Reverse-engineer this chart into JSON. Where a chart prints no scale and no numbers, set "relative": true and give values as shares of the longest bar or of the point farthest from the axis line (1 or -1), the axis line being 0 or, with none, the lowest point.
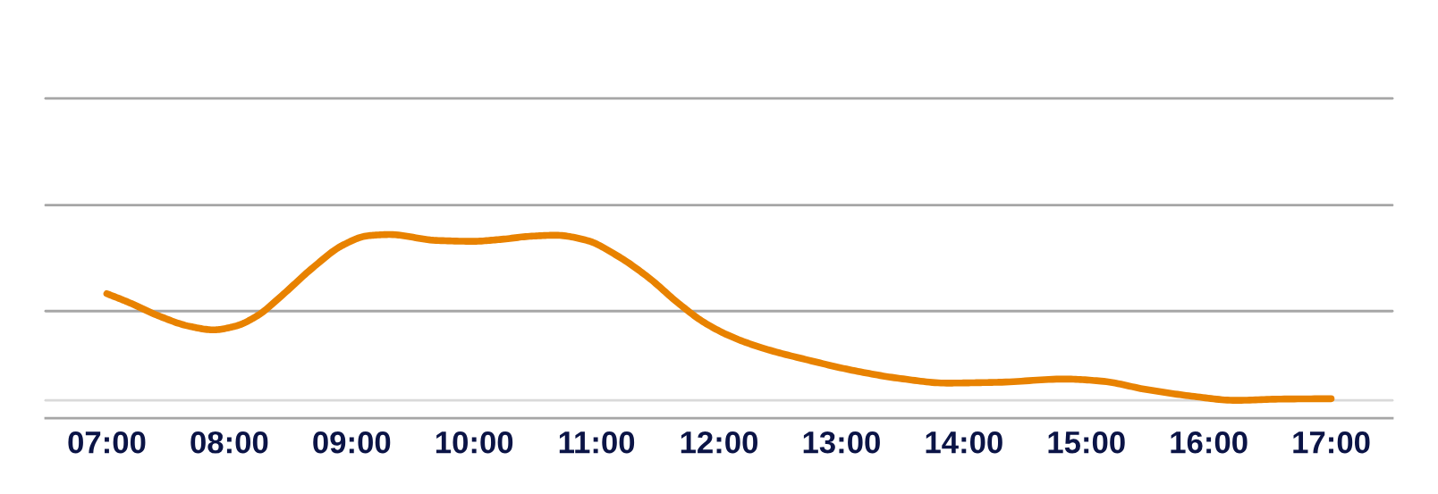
{
  "chart_data": {
    "type": "line",
    "relative": true,
    "x": [
      7.0,
      7.17,
      7.42,
      7.67,
      7.87,
      8.05,
      8.23,
      8.43,
      8.68,
      8.93,
      9.13,
      9.31,
      9.69,
      9.99,
      10.21,
      10.47,
      10.67,
      10.92,
      11.17,
      11.42,
      11.67,
      11.87,
      12.08,
      12.35,
      12.73,
      13.11,
      13.48,
      13.86,
      14.1,
      14.31,
      14.82,
      15.12,
      15.49,
      15.86,
      16.22,
      16.59,
      17.0
    ],
    "values": [
      0.678,
      0.633,
      0.558,
      0.501,
      0.481,
      0.501,
      0.558,
      0.668,
      0.818,
      0.943,
      0.993,
      1.0,
      0.968,
      0.963,
      0.973,
      0.991,
      0.996,
      0.968,
      0.884,
      0.768,
      0.625,
      0.525,
      0.45,
      0.383,
      0.316,
      0.258,
      0.216,
      0.191,
      0.193,
      0.196,
      0.213,
      0.202,
      0.156,
      0.12,
      0.097,
      0.104,
      0.106
    ],
    "color": "#E88200",
    "xlim": [
      6.5,
      17.5
    ],
    "xticks": [
      {
        "value": 7,
        "label": "07:00"
      },
      {
        "value": 8,
        "label": "08:00"
      },
      {
        "value": 9,
        "label": "09:00"
      },
      {
        "value": 10,
        "label": "10:00"
      },
      {
        "value": 11,
        "label": "11:00"
      },
      {
        "value": 12,
        "label": "12:00"
      },
      {
        "value": 13,
        "label": "13:00"
      },
      {
        "value": 14,
        "label": "14:00"
      },
      {
        "value": 15,
        "label": "15:00"
      },
      {
        "value": 16,
        "label": "16:00"
      },
      {
        "value": 17,
        "label": "17:00"
      }
    ],
    "ref_lines": [
      {
        "axis": "y",
        "value": 0.097,
        "color": "#D9D9D9"
      },
      {
        "axis": "y",
        "value": 0.583,
        "color": "#A6A6A6"
      },
      {
        "axis": "y",
        "value": 1.16,
        "color": "#A6A6A6"
      },
      {
        "axis": "y",
        "value": 1.741,
        "color": "#A6A6A6"
      }
    ]
  }
}
